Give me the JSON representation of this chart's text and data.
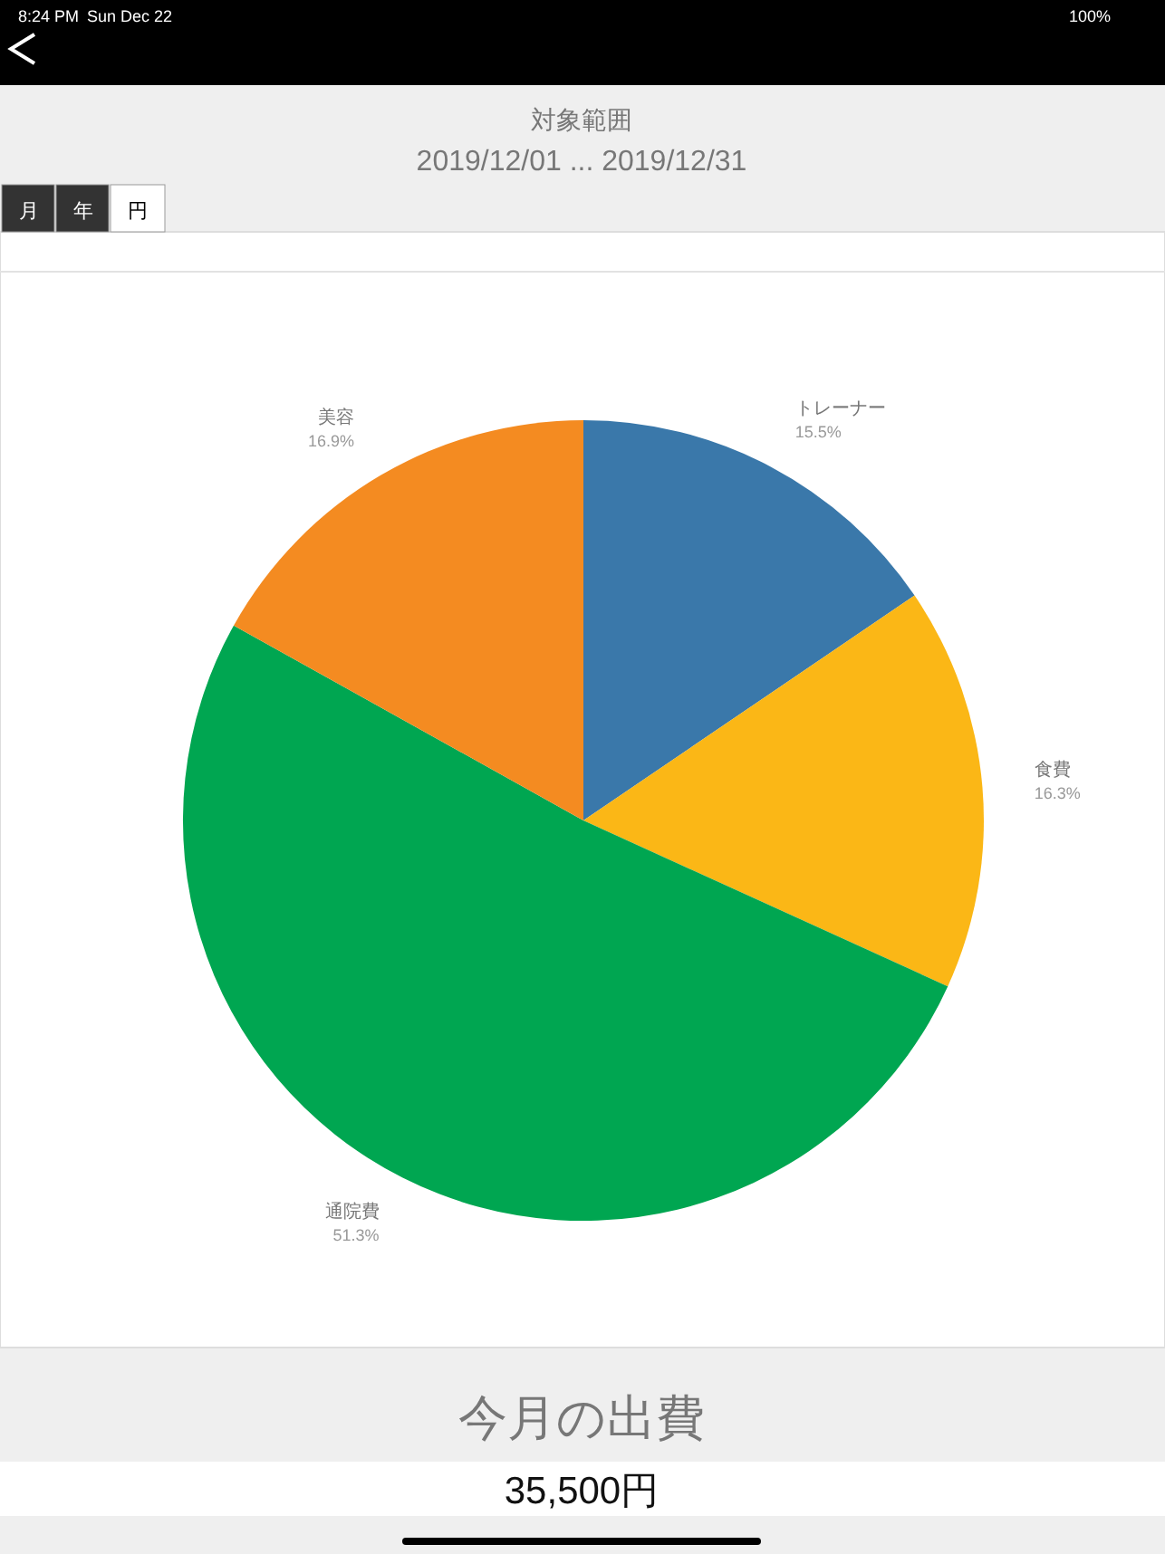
{
  "chart_data": {
    "type": "pie",
    "title": "対象範囲",
    "subtitle": "2019/12/01 ... 2019/12/31",
    "categories": [
      "トレーナー",
      "食費",
      "通院費",
      "美容"
    ],
    "values": [
      15.5,
      16.3,
      51.3,
      16.9
    ],
    "colors": [
      "#3a78aa",
      "#fbb716",
      "#00a651",
      "#f48b21"
    ],
    "value_labels": [
      "15.5%",
      "16.3%",
      "51.3%",
      "16.9%"
    ],
    "annotations": [
      "8:24 PM",
      "Sun Dec 22",
      "100%",
      "月",
      "年",
      "円",
      "今月の出費",
      "35,500円"
    ]
  }
}
